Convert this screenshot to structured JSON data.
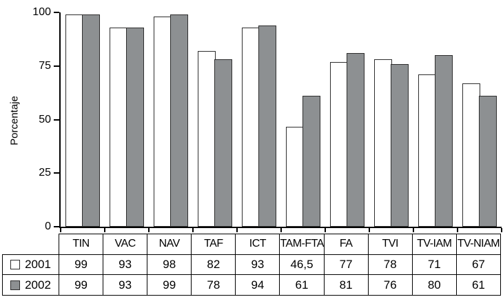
{
  "chart_data": {
    "type": "bar",
    "title": "",
    "xlabel": "",
    "ylabel": "Porcentaje",
    "ylim": [
      0,
      100
    ],
    "yticks": [
      0,
      25,
      50,
      75,
      100
    ],
    "grid": false,
    "legend_position": "table-rows-left",
    "categories": [
      "TIN",
      "VAC",
      "NAV",
      "TAF",
      "ICT",
      "TAM-FTA",
      "FA",
      "TVI",
      "TV-IAM",
      "TV-NIAM"
    ],
    "series": [
      {
        "name": "2001",
        "color": "#ffffff",
        "values": [
          99,
          93,
          98,
          82,
          93,
          46.5,
          77,
          78,
          71,
          67
        ]
      },
      {
        "name": "2002",
        "color": "#8d9092",
        "values": [
          99,
          93,
          99,
          78,
          94,
          61,
          81,
          76,
          80,
          61
        ]
      }
    ]
  },
  "table": {
    "corner_label": "",
    "headers": [
      "TIN",
      "VAC",
      "NAV",
      "TAF",
      "ICT",
      "TAM-FTA",
      "FA",
      "TVI",
      "TV-IAM",
      "TV-NIAM"
    ],
    "rows": [
      {
        "label": "2001",
        "swatch_color": "#ffffff",
        "cells": [
          "99",
          "93",
          "98",
          "82",
          "93",
          "46,5",
          "77",
          "78",
          "71",
          "67"
        ]
      },
      {
        "label": "2002",
        "swatch_color": "#8d9092",
        "cells": [
          "99",
          "93",
          "99",
          "78",
          "94",
          "61",
          "81",
          "76",
          "80",
          "61"
        ]
      }
    ]
  },
  "colors": {
    "axis": "#000000",
    "bar_border": "#2d2d2d",
    "table_border": "#000000",
    "bar_2001": "#ffffff",
    "bar_2002": "#8d9092"
  }
}
